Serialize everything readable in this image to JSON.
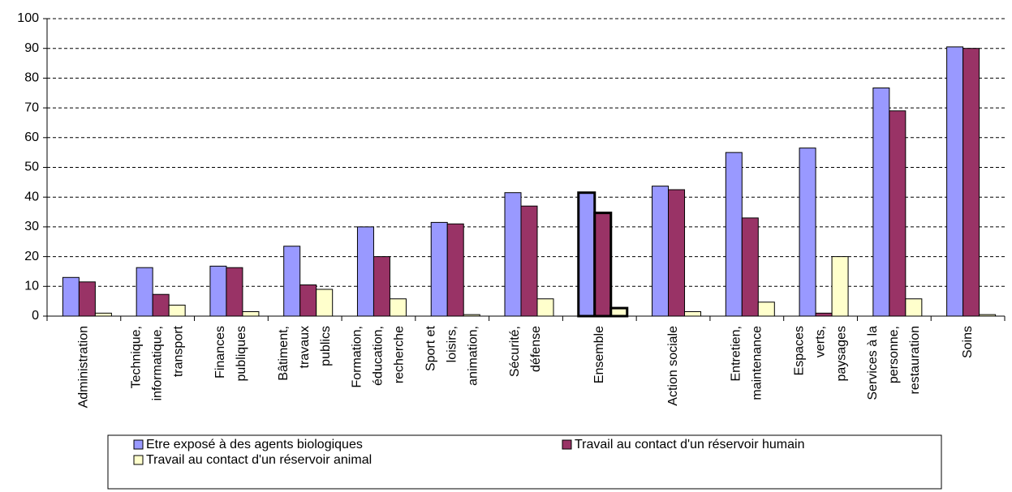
{
  "chart_data": {
    "type": "bar",
    "categories": [
      [
        "Administration"
      ],
      [
        "Technique,",
        "informatique,",
        "transport"
      ],
      [
        "Finances",
        "publiques"
      ],
      [
        "Bâtiment,",
        "travaux",
        "publics"
      ],
      [
        "Formation,",
        "éducation,",
        "recherche"
      ],
      [
        "Sport et",
        "loisirs,",
        "animation,"
      ],
      [
        "Sécurité,",
        "défense"
      ],
      [
        "Ensemble"
      ],
      [
        "Action sociale"
      ],
      [
        "Entretien,",
        "maintenance"
      ],
      [
        "Espaces",
        "verts,",
        "paysages"
      ],
      [
        "Services à la",
        "personne,",
        "restauration"
      ],
      [
        "Soins"
      ]
    ],
    "series": [
      {
        "name": "Etre exposé à des agents biologiques",
        "color": "#9999ff",
        "values": [
          13,
          16.3,
          16.8,
          23.5,
          30,
          31.5,
          41.5,
          41.5,
          43.7,
          55,
          56.5,
          76.7,
          90.5
        ]
      },
      {
        "name": "Travail au contact d'un réservoir humain",
        "color": "#993366",
        "values": [
          11.5,
          7.3,
          16.3,
          10.5,
          20,
          31,
          37,
          34.7,
          42.5,
          33,
          1,
          69,
          90
        ]
      },
      {
        "name": "Travail au contact d'un réservoir animal",
        "color": "#ffffcc",
        "values": [
          1,
          3.7,
          1.5,
          9,
          5.8,
          0.5,
          5.8,
          2.7,
          1.5,
          4.7,
          20,
          5.8,
          0.5
        ]
      }
    ],
    "highlight_category": 7,
    "ylim": [
      0,
      100
    ],
    "yticks": [
      0,
      10,
      20,
      30,
      40,
      50,
      60,
      70,
      80,
      90,
      100
    ],
    "grid": true,
    "legend": "bottom"
  }
}
